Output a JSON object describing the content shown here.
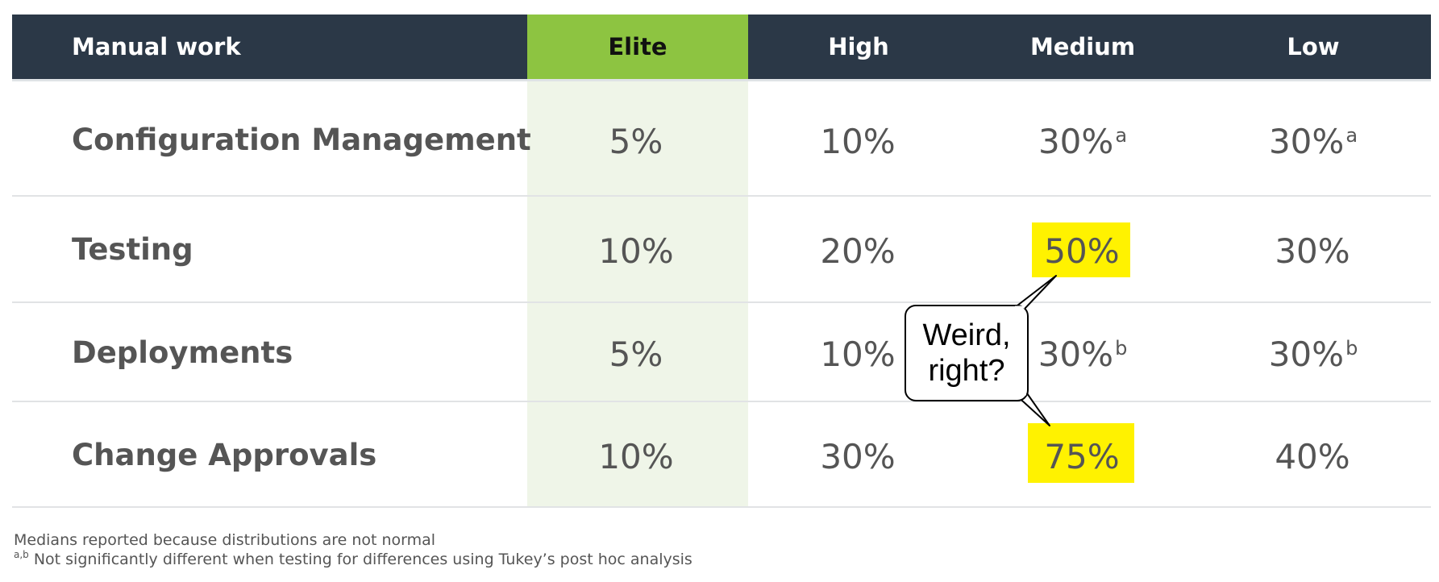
{
  "table": {
    "header": {
      "corner_label": "Manual work",
      "columns": [
        "Elite",
        "High",
        "Medium",
        "Low"
      ]
    },
    "rows": [
      {
        "label": "Configuration Management",
        "values": [
          "5%",
          "10%",
          "30%",
          "30%"
        ],
        "superscripts": [
          "",
          "",
          "a",
          "a"
        ]
      },
      {
        "label": "Testing",
        "values": [
          "10%",
          "20%",
          "50%",
          "30%"
        ],
        "superscripts": [
          "",
          "",
          "",
          ""
        ]
      },
      {
        "label": "Deployments",
        "values": [
          "5%",
          "10%",
          "30%",
          "30%"
        ],
        "superscripts": [
          "",
          "",
          "b",
          "b"
        ]
      },
      {
        "label": "Change Approvals",
        "values": [
          "10%",
          "30%",
          "75%",
          "40%"
        ],
        "superscripts": [
          "",
          "",
          "",
          ""
        ]
      }
    ],
    "highlighted_cells": [
      "Testing / Medium",
      "Change Approvals / Medium"
    ]
  },
  "callout": {
    "line1": "Weird,",
    "line2": "right?"
  },
  "footnotes": {
    "note1": "Medians reported because distributions are not normal",
    "note2_marker": "a,b",
    "note2_text": " Not significantly different when testing for differences using Tukey’s post hoc analysis"
  },
  "colors": {
    "header_bg": "#2b3847",
    "elite_header_bg": "#8dc441",
    "elite_column_bg": "#eff5e8",
    "highlight": "#fff200",
    "text": "#555555"
  }
}
